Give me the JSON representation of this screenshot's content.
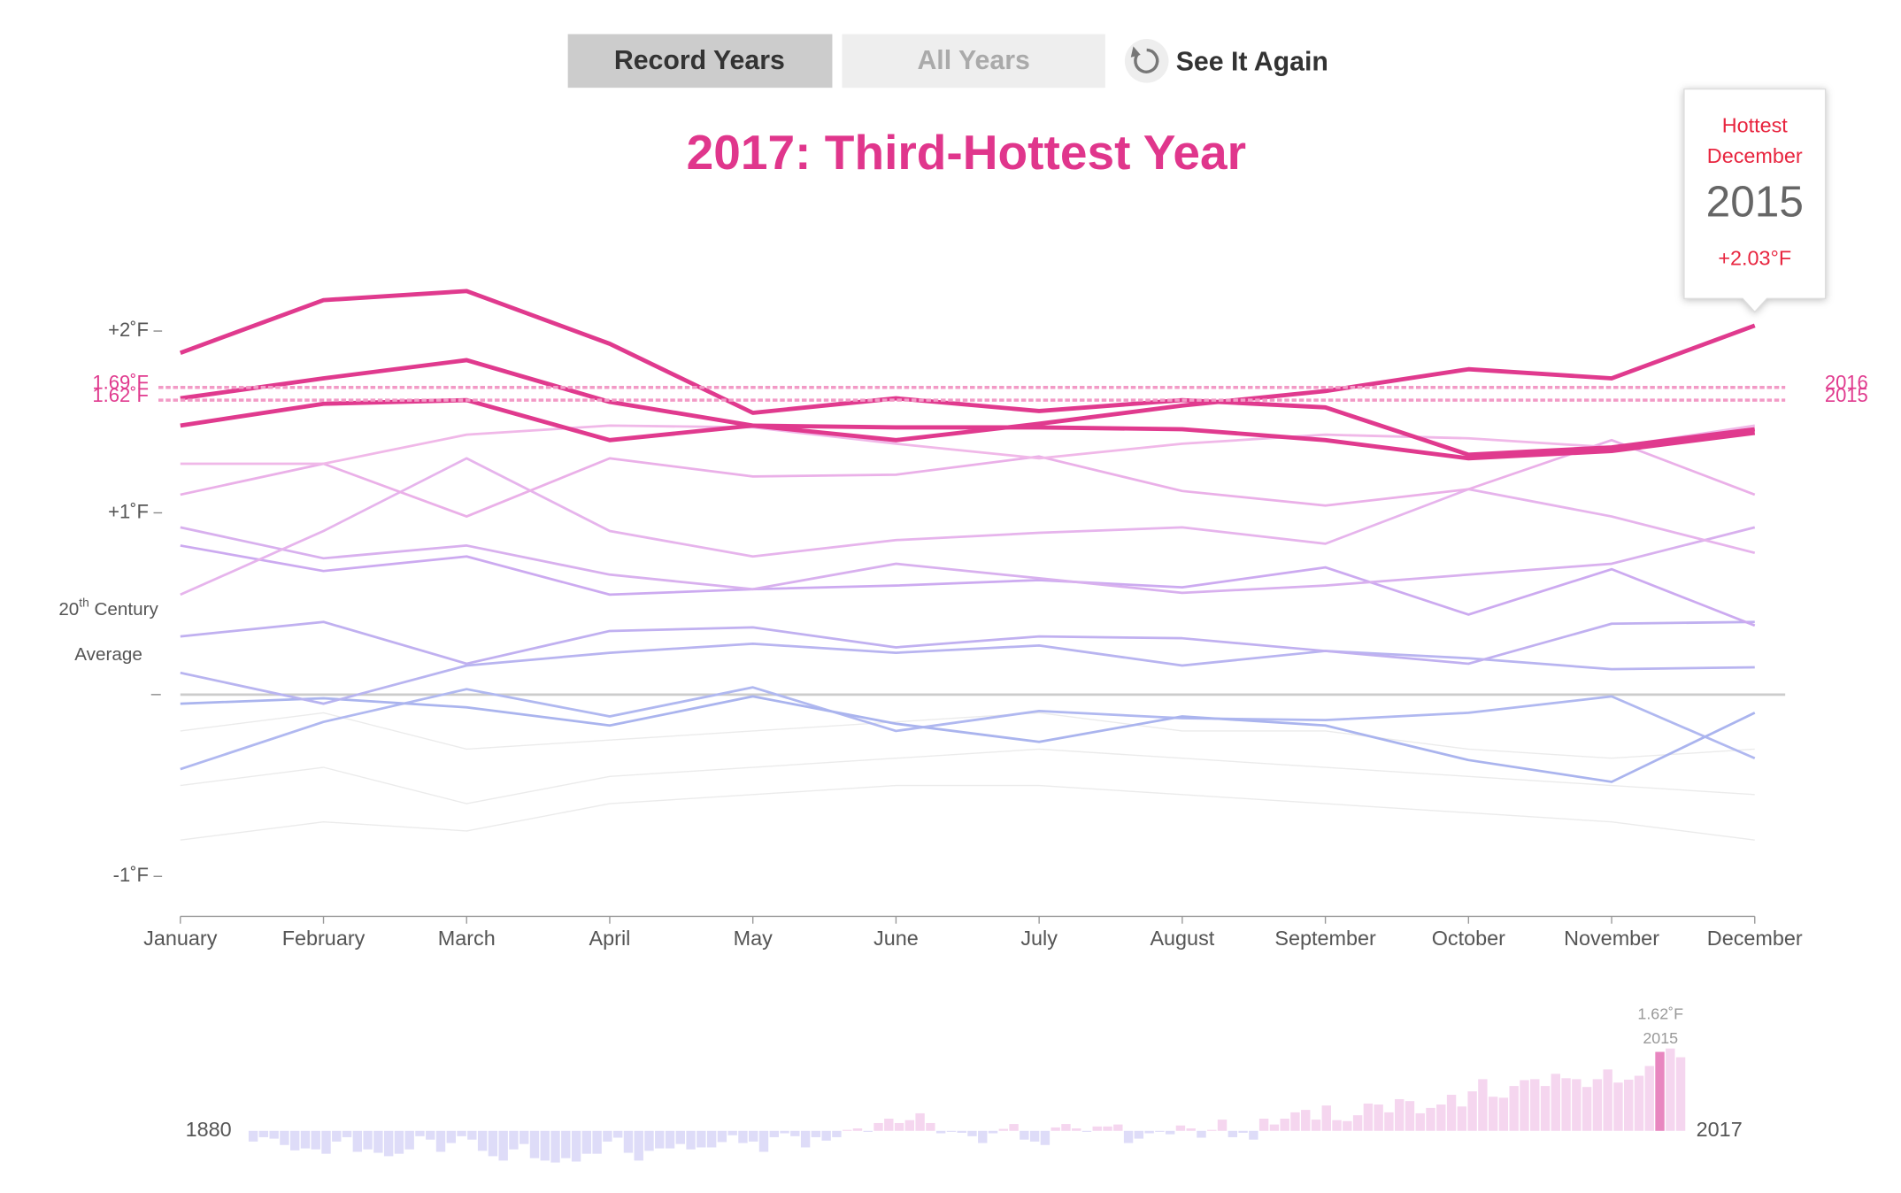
{
  "controls": {
    "record_years": "Record Years",
    "all_years": "All Years",
    "see_it_again": "See It Again"
  },
  "tooltip": {
    "line1": "Hottest",
    "line2": "December",
    "year": "2015",
    "value_label": "+2.03°F"
  },
  "average_label": {
    "number": "20",
    "suffix": "th",
    "rest": " Century",
    "line2": "Average"
  },
  "chart_data": [
    {
      "type": "line",
      "title": "2017: Third-Hottest Year",
      "categories": [
        "January",
        "February",
        "March",
        "April",
        "May",
        "June",
        "July",
        "August",
        "September",
        "October",
        "November",
        "December"
      ],
      "ylim": [
        -1.22,
        2.4
      ],
      "yticks": [
        {
          "value": 2,
          "label": "+2˚F"
        },
        {
          "value": 1,
          "label": "+1˚F"
        },
        {
          "value": -1,
          "label": "-1˚F"
        }
      ],
      "average_line": 0,
      "annual_lines": [
        {
          "value": 1.69,
          "label": "1.69˚F",
          "year": "2016"
        },
        {
          "value": 1.62,
          "label": "1.62˚F",
          "year": "2015"
        }
      ],
      "annual_line_color": "#f29ac6",
      "series": [
        {
          "color": "#ebebeb",
          "line_width": 1,
          "values": [
            -0.8,
            -0.7,
            -0.75,
            -0.6,
            -0.55,
            -0.5,
            -0.5,
            -0.55,
            -0.6,
            -0.65,
            -0.7,
            -0.8
          ]
        },
        {
          "color": "#ebebeb",
          "line_width": 1,
          "values": [
            -0.5,
            -0.4,
            -0.6,
            -0.45,
            -0.4,
            -0.35,
            -0.3,
            -0.35,
            -0.4,
            -0.45,
            -0.5,
            -0.55
          ]
        },
        {
          "color": "#ebebeb",
          "line_width": 1,
          "values": [
            -0.2,
            -0.1,
            -0.3,
            -0.25,
            -0.2,
            -0.15,
            -0.1,
            -0.2,
            -0.2,
            -0.3,
            -0.35,
            -0.3
          ]
        },
        {
          "color": "#b0b8f0",
          "line_width": 2,
          "values": [
            -0.41,
            -0.15,
            0.03,
            -0.12,
            0.04,
            -0.2,
            -0.09,
            -0.13,
            -0.14,
            -0.1,
            -0.01,
            -0.35
          ]
        },
        {
          "color": "#aab4ee",
          "line_width": 2,
          "values": [
            -0.05,
            -0.02,
            -0.07,
            -0.17,
            -0.01,
            -0.16,
            -0.26,
            -0.12,
            -0.17,
            -0.36,
            -0.48,
            -0.1
          ]
        },
        {
          "color": "#b8b4f0",
          "line_width": 2,
          "values": [
            0.12,
            -0.05,
            0.16,
            0.23,
            0.28,
            0.23,
            0.27,
            0.16,
            0.24,
            0.2,
            0.14,
            0.15
          ]
        },
        {
          "color": "#c0b0f0",
          "line_width": 2,
          "values": [
            0.32,
            0.4,
            0.17,
            0.35,
            0.37,
            0.26,
            0.32,
            0.31,
            0.24,
            0.17,
            0.39,
            0.4
          ]
        },
        {
          "color": "#ccaaf0",
          "line_width": 2,
          "values": [
            0.82,
            0.68,
            0.76,
            0.55,
            0.58,
            0.6,
            0.63,
            0.59,
            0.7,
            0.44,
            0.69,
            0.38
          ]
        },
        {
          "color": "#d8b0ee",
          "line_width": 2,
          "values": [
            0.92,
            0.75,
            0.82,
            0.66,
            0.58,
            0.72,
            0.64,
            0.56,
            0.6,
            0.66,
            0.72,
            0.92
          ]
        },
        {
          "color": "#e6b4ec",
          "line_width": 2,
          "values": [
            0.55,
            0.9,
            1.3,
            0.9,
            0.76,
            0.85,
            0.89,
            0.92,
            0.83,
            1.13,
            0.98,
            0.78
          ]
        },
        {
          "color": "#eab0e8",
          "line_width": 2,
          "values": [
            1.1,
            1.27,
            0.98,
            1.3,
            1.2,
            1.21,
            1.31,
            1.12,
            1.04,
            1.13,
            1.4,
            1.1
          ]
        },
        {
          "color": "#f0b8e8",
          "line_width": 2,
          "values": [
            1.27,
            1.27,
            1.43,
            1.48,
            1.47,
            1.38,
            1.3,
            1.38,
            1.43,
            1.41,
            1.36,
            1.48
          ]
        },
        {
          "color": "#e03a8e",
          "line_width": 3.5,
          "values": [
            1.63,
            1.74,
            1.84,
            1.61,
            1.48,
            1.47,
            1.47,
            1.46,
            1.4,
            1.3,
            1.34,
            1.44
          ]
        },
        {
          "name": "2015",
          "color": "#e03a8e",
          "line_width": 3.5,
          "values": [
            1.48,
            1.6,
            1.62,
            1.4,
            1.48,
            1.4,
            1.49,
            1.59,
            1.67,
            1.79,
            1.74,
            2.03
          ]
        },
        {
          "name": "2016",
          "color": "#e03a8e",
          "line_width": 3.5,
          "values": [
            1.88,
            2.17,
            2.22,
            1.93,
            1.55,
            1.63,
            1.56,
            1.62,
            1.58,
            1.32,
            1.36,
            1.46
          ]
        }
      ]
    },
    {
      "type": "bar",
      "xlim": [
        1880,
        2017
      ],
      "xticks": [
        1880,
        2017
      ],
      "ylim": [
        -0.7,
        1.8
      ],
      "colors": {
        "negative": "#dedcf8",
        "positive": "#f5d6ef",
        "highlight": "#e886c0"
      },
      "annotation": {
        "value_label": "1.62˚F",
        "year": 2015
      },
      "values": [
        -0.22,
        -0.13,
        -0.16,
        -0.29,
        -0.4,
        -0.36,
        -0.38,
        -0.47,
        -0.22,
        -0.13,
        -0.43,
        -0.38,
        -0.45,
        -0.52,
        -0.47,
        -0.38,
        -0.11,
        -0.18,
        -0.43,
        -0.25,
        -0.11,
        -0.18,
        -0.41,
        -0.52,
        -0.61,
        -0.38,
        -0.27,
        -0.56,
        -0.61,
        -0.65,
        -0.56,
        -0.63,
        -0.47,
        -0.47,
        -0.22,
        -0.14,
        -0.45,
        -0.61,
        -0.41,
        -0.36,
        -0.36,
        -0.27,
        -0.38,
        -0.34,
        -0.34,
        -0.23,
        -0.09,
        -0.25,
        -0.22,
        -0.43,
        -0.13,
        -0.05,
        -0.11,
        -0.34,
        -0.13,
        -0.2,
        -0.13,
        0.02,
        0.05,
        -0.02,
        0.16,
        0.25,
        0.16,
        0.22,
        0.36,
        0.16,
        -0.05,
        -0.02,
        -0.04,
        -0.11,
        -0.25,
        -0.05,
        0.04,
        0.14,
        -0.18,
        -0.22,
        -0.29,
        0.07,
        0.14,
        0.05,
        -0.02,
        0.09,
        0.09,
        0.13,
        -0.25,
        -0.16,
        -0.05,
        -0.02,
        -0.07,
        0.11,
        0.05,
        -0.14,
        0.02,
        0.23,
        -0.13,
        -0.04,
        -0.18,
        0.25,
        0.13,
        0.25,
        0.38,
        0.43,
        0.23,
        0.52,
        0.22,
        0.2,
        0.32,
        0.56,
        0.54,
        0.38,
        0.65,
        0.61,
        0.36,
        0.47,
        0.54,
        0.74,
        0.5,
        0.81,
        1.06,
        0.7,
        0.68,
        0.92,
        1.04,
        1.06,
        0.92,
        1.17,
        1.08,
        1.06,
        0.9,
        1.06,
        1.26,
        0.99,
        1.05,
        1.13,
        1.33,
        1.62,
        1.69,
        1.51
      ]
    }
  ]
}
